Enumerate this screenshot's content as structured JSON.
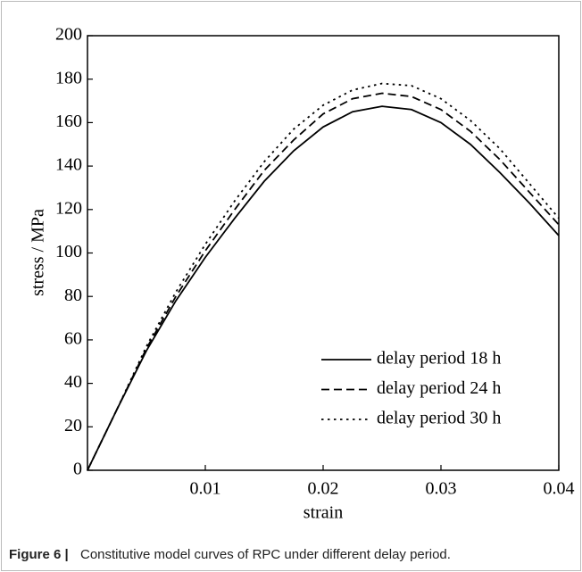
{
  "chart_data": {
    "type": "line",
    "x_label": "strain",
    "y_label": "stress / MPa",
    "x": [
      0,
      0.0025,
      0.005,
      0.0075,
      0.01,
      0.0125,
      0.015,
      0.0175,
      0.02,
      0.0225,
      0.025,
      0.0275,
      0.03,
      0.0325,
      0.035,
      0.0375,
      0.04
    ],
    "series": [
      {
        "name": "delay period 18 h",
        "color": "#000000",
        "style": "solid",
        "values": [
          0,
          28,
          55,
          78,
          98,
          116,
          133,
          147,
          158,
          165,
          167.5,
          166,
          160,
          150,
          137,
          123,
          108
        ]
      },
      {
        "name": "delay period 24 h",
        "color": "#000000",
        "style": "dashed",
        "values": [
          0,
          28,
          56,
          80,
          101,
          120,
          138,
          152,
          164,
          171,
          173.5,
          172,
          166,
          156,
          143,
          128,
          113
        ]
      },
      {
        "name": "delay period 30 h",
        "color": "#000000",
        "style": "dotted",
        "values": [
          0,
          28,
          57,
          82,
          104,
          124,
          142,
          157,
          168,
          175,
          178,
          177,
          171,
          161,
          148,
          132,
          116
        ]
      }
    ],
    "xlim": [
      0,
      0.04
    ],
    "xticks": [
      0.01,
      0.02,
      0.03,
      0.04
    ],
    "ylim": [
      0,
      200
    ],
    "yticks": [
      0,
      20,
      40,
      60,
      80,
      100,
      120,
      140,
      160,
      180,
      200
    ],
    "legend": "lower right",
    "grid": false
  },
  "caption": {
    "label": "Figure 6 |",
    "text": "Constitutive model curves of RPC under different delay period."
  }
}
